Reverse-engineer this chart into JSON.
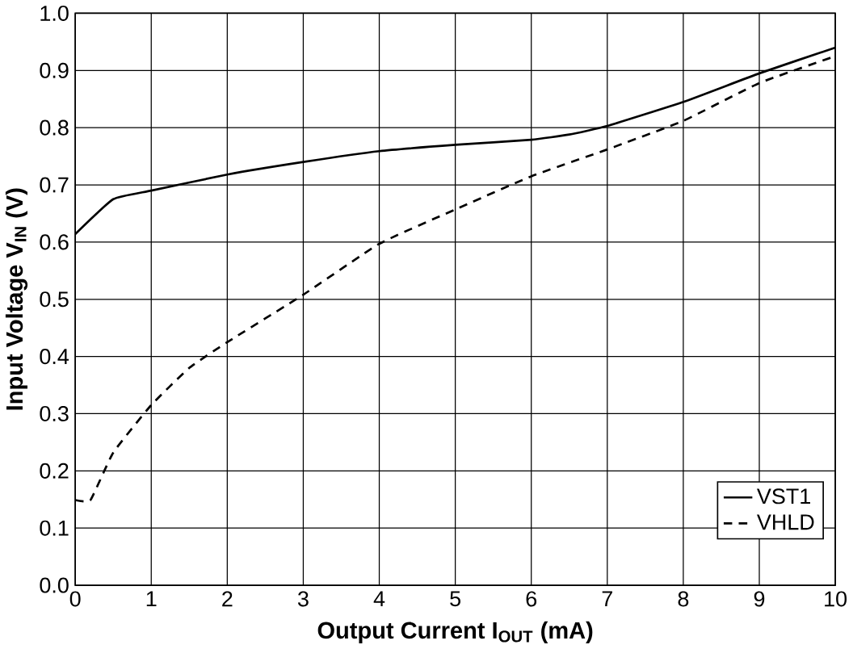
{
  "chart_data": {
    "type": "line",
    "xlabel": "Output Current  I$_{OUT}$ (mA)",
    "ylabel": "Input Voltage V$_{IN}$ (V)",
    "xlim": [
      0,
      10
    ],
    "ylim": [
      0,
      1
    ],
    "xticks": [
      0,
      1,
      2,
      3,
      4,
      5,
      6,
      7,
      8,
      9,
      10
    ],
    "yticks": [
      {
        "value": 0,
        "label": "0.0"
      },
      {
        "value": 0.1,
        "label": "0.1"
      },
      {
        "value": 0.2,
        "label": "0.2"
      },
      {
        "value": 0.3,
        "label": "0.3"
      },
      {
        "value": 0.4,
        "label": "0.4"
      },
      {
        "value": 0.5,
        "label": "0.5"
      },
      {
        "value": 0.6,
        "label": "0.6"
      },
      {
        "value": 0.7,
        "label": "0.7"
      },
      {
        "value": 0.8,
        "label": "0.8"
      },
      {
        "value": 0.9,
        "label": "0.9"
      },
      {
        "value": 1,
        "label": "1.0"
      }
    ],
    "grid": true,
    "legend": "bottom right",
    "marker": "none",
    "series": [
      {
        "name": "VST1",
        "color": "#000000",
        "line_style": "solid",
        "x": [
          0,
          0.5,
          1,
          2,
          3,
          4,
          5,
          6,
          6.5,
          7,
          8,
          9,
          10
        ],
        "values": [
          0.614,
          0.675,
          0.69,
          0.718,
          0.74,
          0.759,
          0.77,
          0.779,
          0.788,
          0.803,
          0.845,
          0.895,
          0.94
        ]
      },
      {
        "name": "VHLD",
        "color": "#000000",
        "line_style": "dashed",
        "x": [
          0,
          0.2,
          0.5,
          1,
          1.5,
          2,
          3,
          4,
          5,
          6,
          7,
          8,
          9,
          10
        ],
        "values": [
          0.149,
          0.149,
          0.232,
          0.315,
          0.38,
          0.425,
          0.508,
          0.597,
          0.657,
          0.715,
          0.762,
          0.812,
          0.878,
          0.925
        ]
      }
    ]
  }
}
